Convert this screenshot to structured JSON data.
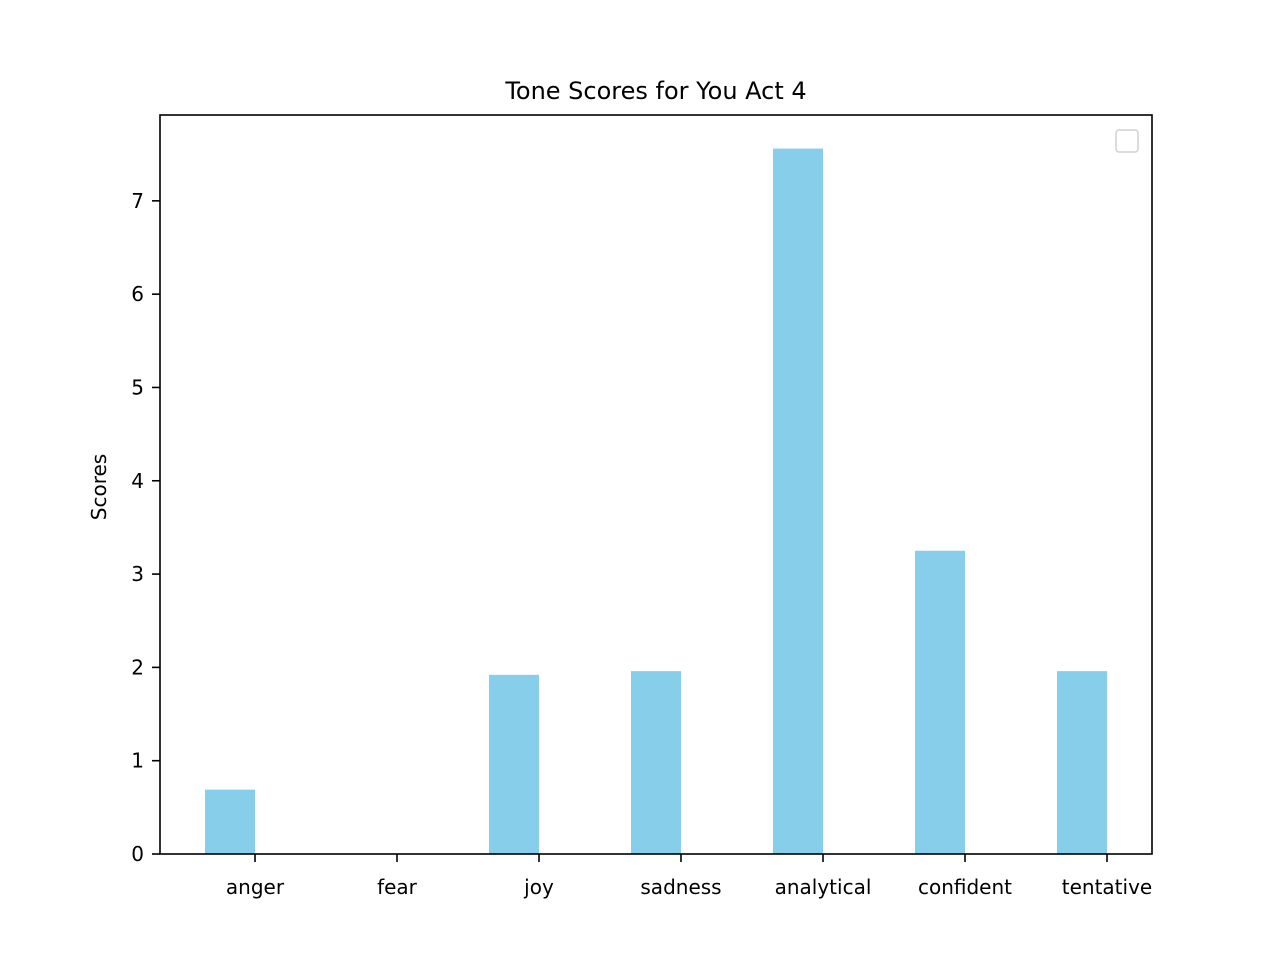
{
  "chart_data": {
    "type": "bar",
    "title": "Tone Scores for You Act 4",
    "xlabel": "",
    "ylabel": "Scores",
    "categories": [
      "anger",
      "fear",
      "joy",
      "sadness",
      "analytical",
      "confident",
      "tentative"
    ],
    "values": [
      0.69,
      0.0,
      1.92,
      1.96,
      7.56,
      3.25,
      1.96
    ],
    "ylim": [
      0,
      7.92
    ],
    "yticks": [
      "0",
      "1",
      "2",
      "3",
      "4",
      "5",
      "6",
      "7"
    ],
    "bar_color": "#87ceeb",
    "grid": false,
    "legend": "top-right (empty)"
  }
}
